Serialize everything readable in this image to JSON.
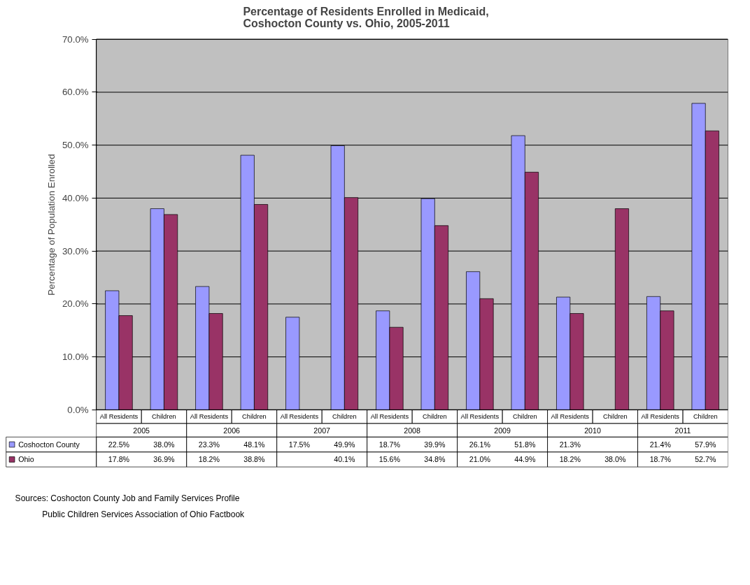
{
  "chart_data": {
    "type": "bar",
    "title": "Percentage of Residents Enrolled in Medicaid,\nCoshocton County vs. Ohio, 2005-2011",
    "ylabel": "Percentage of Population Enrolled",
    "categories": [
      "All Residents",
      "Children",
      "All Residents",
      "Children",
      "All Residents",
      "Children",
      "All Residents",
      "Children",
      "All Residents",
      "Children",
      "All Residents",
      "Children",
      "All Residents",
      "Children"
    ],
    "series": [
      {
        "name": "Coshocton County",
        "color": "#9999ff",
        "values": [
          22.5,
          38.0,
          23.3,
          48.1,
          17.5,
          49.9,
          18.7,
          39.9,
          26.1,
          51.8,
          21.3,
          null,
          21.4,
          57.9
        ],
        "value_labels": [
          "22.5%",
          "38.0%",
          "23.3%",
          "48.1%",
          "17.5%",
          "49.9%",
          "18.7%",
          "39.9%",
          "26.1%",
          "51.8%",
          "21.3%",
          null,
          "21.4%",
          "57.9%"
        ]
      },
      {
        "name": "Ohio",
        "color": "#993366",
        "values": [
          17.8,
          36.9,
          18.2,
          38.8,
          null,
          40.1,
          15.6,
          34.8,
          21.0,
          44.9,
          18.2,
          38.0,
          18.7,
          52.7
        ],
        "value_labels": [
          "17.8%",
          "36.9%",
          "18.2%",
          "38.8%",
          null,
          "40.1%",
          "15.6%",
          "34.8%",
          "21.0%",
          "44.9%",
          "18.2%",
          "38.0%",
          "18.7%",
          "52.7%"
        ]
      }
    ],
    "ylim": [
      0,
      70
    ],
    "yticks": [
      {
        "value": 0,
        "label": "0.0%"
      },
      {
        "value": 10,
        "label": "10.0%"
      },
      {
        "value": 20,
        "label": "20.0%"
      },
      {
        "value": 30,
        "label": "30.0%"
      },
      {
        "value": 40,
        "label": "40.0%"
      },
      {
        "value": 50,
        "label": "50.0%"
      },
      {
        "value": 60,
        "label": "60.0%"
      },
      {
        "value": 70,
        "label": "70.0%"
      }
    ],
    "grid": "y",
    "legend": "bottom",
    "annotations": [
      "2005",
      "2006",
      "2007",
      "2008",
      "2009",
      "2010",
      "2011",
      "Sources: Coshocton County Job and Family Services Profile",
      "Public Children Services Association of Ohio Factbook"
    ]
  }
}
